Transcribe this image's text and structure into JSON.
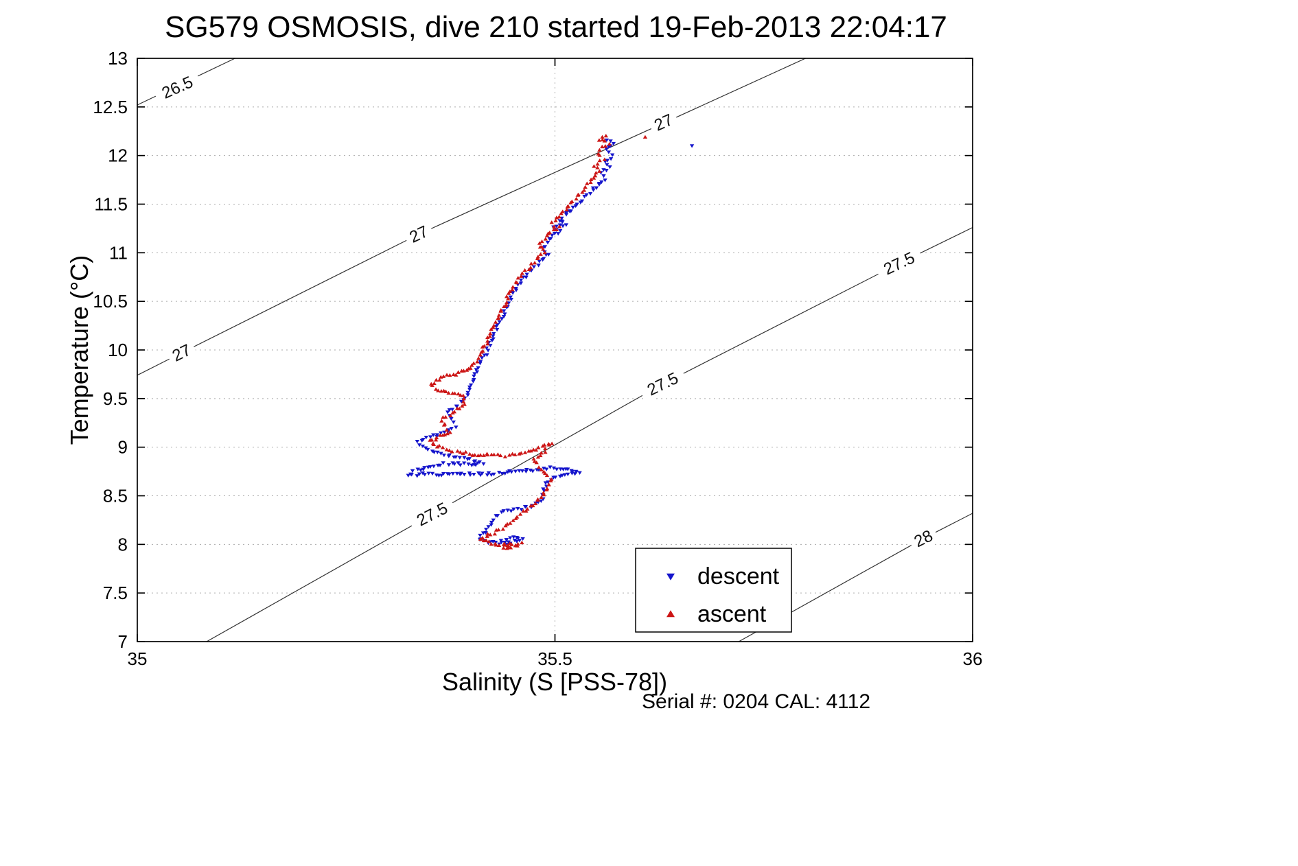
{
  "title": "SG579 OSMOSIS, dive 210 started 19-Feb-2013 22:04:17",
  "footer": {
    "serial_text": "Serial #: 0204  CAL: 4112"
  },
  "chart_data": {
    "type": "scatter",
    "title": "SG579 OSMOSIS, dive 210 started 19-Feb-2013 22:04:17",
    "xlabel": "Salinity (S [PSS-78])",
    "ylabel": "Temperature (°C)",
    "xlim": [
      35,
      36
    ],
    "ylim": [
      7,
      13
    ],
    "x_ticks": [
      35,
      35.5,
      36
    ],
    "x_tick_labels": [
      "35",
      "35.5",
      "36"
    ],
    "y_ticks": [
      7,
      7.5,
      8,
      8.5,
      9,
      9.5,
      10,
      10.5,
      11,
      11.5,
      12,
      12.5,
      13
    ],
    "y_tick_labels": [
      "7",
      "7.5",
      "8",
      "8.5",
      "9",
      "9.5",
      "10",
      "10.5",
      "11",
      "11.5",
      "12",
      "12.5",
      "13"
    ],
    "grid": "dotted",
    "grid_color": "#aaaaaa",
    "legend": {
      "position": "lower-right-inside",
      "entries": [
        {
          "label": "descent",
          "marker": "triangle-down",
          "color": "#1515cc"
        },
        {
          "label": "ascent",
          "marker": "triangle-up",
          "color": "#cc1515"
        }
      ]
    },
    "contours": [
      {
        "level": "26.5",
        "points": [
          [
            35.0,
            12.52
          ],
          [
            35.117,
            13.0
          ]
        ],
        "labels": [
          {
            "s": 35.048,
            "t": 12.7,
            "angle": -24
          }
        ]
      },
      {
        "level": "27",
        "points": [
          [
            35.0,
            9.74
          ],
          [
            35.053,
            9.97
          ],
          [
            35.337,
            11.19
          ],
          [
            35.629,
            12.33
          ],
          [
            35.8,
            13.0
          ]
        ],
        "labels": [
          {
            "s": 35.053,
            "t": 9.97,
            "angle": -26
          },
          {
            "s": 35.337,
            "t": 11.19,
            "angle": -25
          },
          {
            "s": 35.63,
            "t": 12.34,
            "angle": -24
          }
        ]
      },
      {
        "level": "27.5",
        "points": [
          [
            35.083,
            7.0
          ],
          [
            35.353,
            8.31
          ],
          [
            35.629,
            9.65
          ],
          [
            35.912,
            10.89
          ],
          [
            36.0,
            11.26
          ]
        ],
        "labels": [
          {
            "s": 35.353,
            "t": 8.31,
            "angle": -27
          },
          {
            "s": 35.629,
            "t": 9.65,
            "angle": -26
          },
          {
            "s": 35.912,
            "t": 10.89,
            "angle": -25
          }
        ]
      },
      {
        "level": "28",
        "points": [
          [
            35.72,
            7.0
          ],
          [
            35.941,
            8.06
          ],
          [
            36.0,
            8.32
          ]
        ],
        "labels": [
          {
            "s": 35.941,
            "t": 8.06,
            "angle": -26
          }
        ]
      }
    ],
    "series": [
      {
        "name": "descent",
        "marker": "triangle-down",
        "color": "#1515cc",
        "waypoints": [
          [
            35.563,
            12.17
          ],
          [
            35.57,
            12.12
          ],
          [
            35.562,
            12.06
          ],
          [
            35.568,
            12.0
          ],
          [
            35.56,
            11.94
          ],
          [
            35.565,
            11.88
          ],
          [
            35.556,
            11.82
          ],
          [
            35.56,
            11.76
          ],
          [
            35.552,
            11.7
          ],
          [
            35.545,
            11.64
          ],
          [
            35.535,
            11.57
          ],
          [
            35.528,
            11.5
          ],
          [
            35.52,
            11.44
          ],
          [
            35.512,
            11.38
          ],
          [
            35.505,
            11.32
          ],
          [
            35.513,
            11.29
          ],
          [
            35.499,
            11.26
          ],
          [
            35.506,
            11.23
          ],
          [
            35.498,
            11.17
          ],
          [
            35.49,
            11.11
          ],
          [
            35.486,
            11.04
          ],
          [
            35.491,
            10.97
          ],
          [
            35.482,
            10.9
          ],
          [
            35.472,
            10.83
          ],
          [
            35.466,
            10.76
          ],
          [
            35.458,
            10.69
          ],
          [
            35.452,
            10.61
          ],
          [
            35.448,
            10.54
          ],
          [
            35.443,
            10.46
          ],
          [
            35.439,
            10.38
          ],
          [
            35.434,
            10.3
          ],
          [
            35.43,
            10.21
          ],
          [
            35.425,
            10.12
          ],
          [
            35.421,
            10.04
          ],
          [
            35.417,
            9.96
          ],
          [
            35.412,
            9.88
          ],
          [
            35.407,
            9.8
          ],
          [
            35.402,
            9.72
          ],
          [
            35.4,
            9.64
          ],
          [
            35.396,
            9.56
          ],
          [
            35.391,
            9.48
          ],
          [
            35.381,
            9.41
          ],
          [
            35.372,
            9.35
          ],
          [
            35.376,
            9.28
          ],
          [
            35.38,
            9.21
          ],
          [
            35.371,
            9.15
          ],
          [
            35.347,
            9.1
          ],
          [
            35.336,
            9.05
          ],
          [
            35.346,
            8.99
          ],
          [
            35.36,
            8.94
          ],
          [
            35.379,
            8.9
          ],
          [
            35.398,
            8.87
          ],
          [
            35.413,
            8.84
          ],
          [
            35.399,
            8.82
          ],
          [
            35.372,
            8.83
          ],
          [
            35.352,
            8.81
          ],
          [
            35.331,
            8.76
          ],
          [
            35.326,
            8.71
          ],
          [
            35.342,
            8.72
          ],
          [
            35.368,
            8.72
          ],
          [
            35.396,
            8.72
          ],
          [
            35.425,
            8.73
          ],
          [
            35.453,
            8.75
          ],
          [
            35.478,
            8.77
          ],
          [
            35.498,
            8.79
          ],
          [
            35.516,
            8.77
          ],
          [
            35.529,
            8.75
          ],
          [
            35.512,
            8.72
          ],
          [
            35.498,
            8.68
          ],
          [
            35.489,
            8.64
          ],
          [
            35.487,
            8.54
          ],
          [
            35.483,
            8.44
          ],
          [
            35.47,
            8.39
          ],
          [
            35.452,
            8.36
          ],
          [
            35.436,
            8.33
          ],
          [
            35.426,
            8.26
          ],
          [
            35.42,
            8.18
          ],
          [
            35.414,
            8.11
          ],
          [
            35.409,
            8.06
          ],
          [
            35.419,
            8.02
          ],
          [
            35.436,
            8.01
          ],
          [
            35.452,
            8.03
          ],
          [
            35.461,
            8.06
          ],
          [
            35.447,
            8.07
          ],
          [
            35.437,
            8.04
          ],
          [
            35.443,
            8.0
          ]
        ],
        "extra_points": [
          [
            35.664,
            12.1
          ]
        ]
      },
      {
        "name": "ascent",
        "marker": "triangle-up",
        "color": "#cc1515",
        "waypoints": [
          [
            35.56,
            12.2
          ],
          [
            35.553,
            12.16
          ],
          [
            35.565,
            12.13
          ],
          [
            35.558,
            12.08
          ],
          [
            35.552,
            12.02
          ],
          [
            35.558,
            11.96
          ],
          [
            35.548,
            11.9
          ],
          [
            35.553,
            11.84
          ],
          [
            35.546,
            11.77
          ],
          [
            35.54,
            11.7
          ],
          [
            35.532,
            11.63
          ],
          [
            35.524,
            11.56
          ],
          [
            35.517,
            11.49
          ],
          [
            35.51,
            11.42
          ],
          [
            35.503,
            11.35
          ],
          [
            35.497,
            11.3
          ],
          [
            35.504,
            11.26
          ],
          [
            35.494,
            11.21
          ],
          [
            35.487,
            11.14
          ],
          [
            35.481,
            11.07
          ],
          [
            35.486,
            11.0
          ],
          [
            35.479,
            10.93
          ],
          [
            35.47,
            10.86
          ],
          [
            35.462,
            10.79
          ],
          [
            35.455,
            10.71
          ],
          [
            35.449,
            10.63
          ],
          [
            35.444,
            10.55
          ],
          [
            35.44,
            10.47
          ],
          [
            35.435,
            10.39
          ],
          [
            35.431,
            10.31
          ],
          [
            35.427,
            10.23
          ],
          [
            35.422,
            10.15
          ],
          [
            35.418,
            10.07
          ],
          [
            35.413,
            9.99
          ],
          [
            35.408,
            9.91
          ],
          [
            35.402,
            9.84
          ],
          [
            35.39,
            9.78
          ],
          [
            35.374,
            9.74
          ],
          [
            35.36,
            9.7
          ],
          [
            35.352,
            9.65
          ],
          [
            35.357,
            9.6
          ],
          [
            35.37,
            9.57
          ],
          [
            35.383,
            9.55
          ],
          [
            35.392,
            9.51
          ],
          [
            35.39,
            9.45
          ],
          [
            35.383,
            9.39
          ],
          [
            35.374,
            9.33
          ],
          [
            35.364,
            9.28
          ],
          [
            35.369,
            9.22
          ],
          [
            35.374,
            9.16
          ],
          [
            35.362,
            9.11
          ],
          [
            35.35,
            9.06
          ],
          [
            35.359,
            9.01
          ],
          [
            35.374,
            8.97
          ],
          [
            35.39,
            8.94
          ],
          [
            35.407,
            8.92
          ],
          [
            35.424,
            8.92
          ],
          [
            35.44,
            8.91
          ],
          [
            35.452,
            8.92
          ],
          [
            35.464,
            8.94
          ],
          [
            35.478,
            8.97
          ],
          [
            35.489,
            9.01
          ],
          [
            35.495,
            9.04
          ],
          [
            35.49,
            8.98
          ],
          [
            35.481,
            8.92
          ],
          [
            35.474,
            8.86
          ],
          [
            35.48,
            8.8
          ],
          [
            35.489,
            8.74
          ],
          [
            35.495,
            8.68
          ],
          [
            35.492,
            8.61
          ],
          [
            35.487,
            8.54
          ],
          [
            35.481,
            8.47
          ],
          [
            35.473,
            8.41
          ],
          [
            35.464,
            8.35
          ],
          [
            35.455,
            8.29
          ],
          [
            35.446,
            8.23
          ],
          [
            35.437,
            8.17
          ],
          [
            35.427,
            8.12
          ],
          [
            35.417,
            8.08
          ],
          [
            35.41,
            8.05
          ],
          [
            35.42,
            8.02
          ],
          [
            35.434,
            8.0
          ],
          [
            35.448,
            7.99
          ],
          [
            35.46,
            8.01
          ],
          [
            35.452,
            7.98
          ],
          [
            35.438,
            7.97
          ],
          [
            35.446,
            8.01
          ]
        ],
        "extra_points": [
          [
            35.608,
            12.19
          ]
        ]
      }
    ]
  }
}
